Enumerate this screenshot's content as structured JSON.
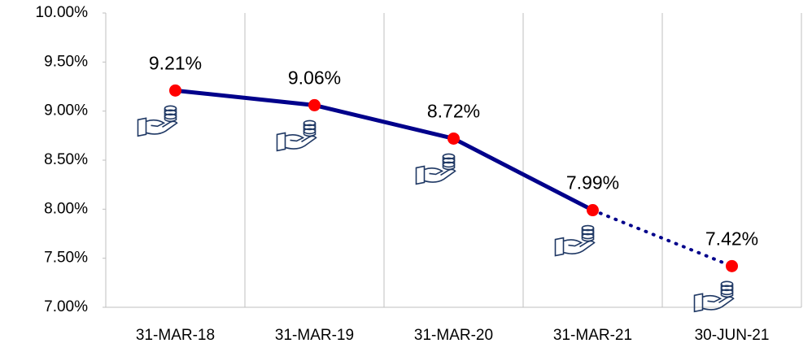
{
  "chart_data": {
    "type": "line",
    "categories": [
      "31-MAR-18",
      "31-MAR-19",
      "31-MAR-20",
      "31-MAR-21",
      "30-JUN-21"
    ],
    "values": [
      9.21,
      9.06,
      8.72,
      7.99,
      7.42
    ],
    "value_labels": [
      "9.21%",
      "9.06%",
      "8.72%",
      "7.99%",
      "7.42%"
    ],
    "color": "#00008b",
    "marker_color": "#ff0000",
    "segment_styles": [
      "solid",
      "solid",
      "solid",
      "dotted"
    ],
    "ylim": [
      7,
      10
    ],
    "yticks": [
      {
        "value": 7,
        "label": "7.00%"
      },
      {
        "value": 7.5,
        "label": "7.50%"
      },
      {
        "value": 8,
        "label": "8.00%"
      },
      {
        "value": 8.5,
        "label": "8.50%"
      },
      {
        "value": 9,
        "label": "9.00%"
      },
      {
        "value": 9.5,
        "label": "9.50%"
      },
      {
        "value": 10,
        "label": "10.00%"
      }
    ],
    "grid": "vertical"
  }
}
